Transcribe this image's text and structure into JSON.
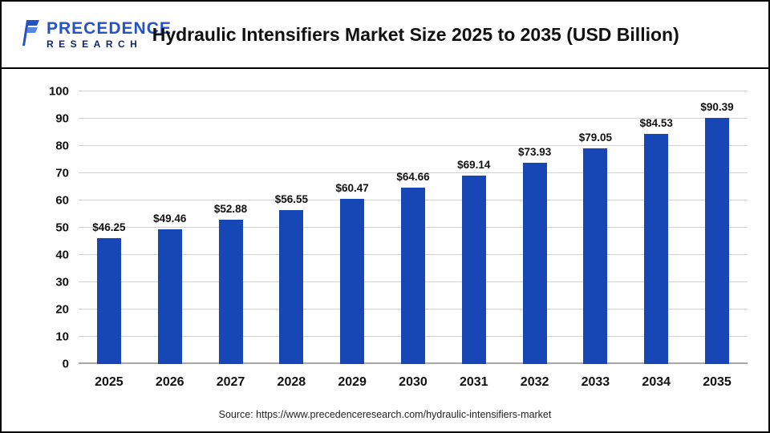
{
  "header": {
    "logo_line1": "PRECEDENCE",
    "logo_line2": "RESEARCH",
    "title": "Hydraulic Intensifiers Market Size 2025 to 2035 (USD Billion)"
  },
  "chart_data": {
    "type": "bar",
    "title": "Hydraulic Intensifiers Market Size 2025 to 2035 (USD Billion)",
    "categories": [
      "2025",
      "2026",
      "2027",
      "2028",
      "2029",
      "2030",
      "2031",
      "2032",
      "2033",
      "2034",
      "2035"
    ],
    "values": [
      46.25,
      49.46,
      52.88,
      56.55,
      60.47,
      64.66,
      69.14,
      73.93,
      79.05,
      84.53,
      90.39
    ],
    "labels": [
      "$46.25",
      "$49.46",
      "$52.88",
      "$56.55",
      "$60.47",
      "$64.66",
      "$69.14",
      "$73.93",
      "$79.05",
      "$84.53",
      "$90.39"
    ],
    "xlabel": "",
    "ylabel": "",
    "ylim": [
      0,
      100
    ],
    "ytick_step": 10,
    "grid": true,
    "legend": false,
    "bar_color": "#1747b4"
  },
  "footer": {
    "source": "Source: https://www.precedenceresearch.com/hydraulic-intensifiers-market"
  },
  "colors": {
    "bar": "#1747b4",
    "logo_primary": "#2553c4",
    "logo_secondary": "#16246b",
    "gridline": "#d2d2d2"
  }
}
